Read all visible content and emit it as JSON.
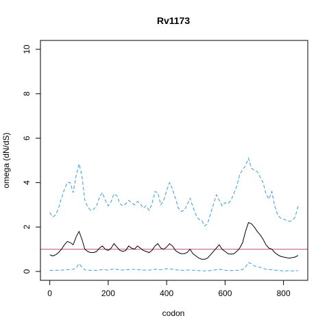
{
  "chart_data": {
    "type": "line",
    "title": "Rv1173",
    "xlabel": "codon",
    "ylabel": "omega (dN/dS)",
    "xlim": [
      -32,
      883
    ],
    "ylim": [
      -0.4,
      10.4
    ],
    "x_ticks": [
      0,
      200,
      400,
      600,
      800
    ],
    "y_ticks": [
      0,
      2,
      4,
      6,
      8,
      10
    ],
    "grid": false,
    "reference_line": {
      "y": 1,
      "color": "#c05090"
    },
    "series": [
      {
        "role": "upper",
        "color": "#3a9ad9",
        "dash": true,
        "points": [
          [
            0,
            2.65
          ],
          [
            10,
            2.45
          ],
          [
            20,
            2.55
          ],
          [
            30,
            2.85
          ],
          [
            40,
            3.3
          ],
          [
            50,
            3.7
          ],
          [
            60,
            4.0
          ],
          [
            70,
            4.0
          ],
          [
            80,
            3.55
          ],
          [
            90,
            4.3
          ],
          [
            100,
            4.85
          ],
          [
            110,
            4.3
          ],
          [
            120,
            3.2
          ],
          [
            130,
            2.9
          ],
          [
            140,
            2.75
          ],
          [
            150,
            2.8
          ],
          [
            160,
            2.95
          ],
          [
            170,
            3.35
          ],
          [
            180,
            3.55
          ],
          [
            190,
            3.2
          ],
          [
            200,
            2.95
          ],
          [
            210,
            3.15
          ],
          [
            220,
            3.5
          ],
          [
            230,
            3.4
          ],
          [
            240,
            3.05
          ],
          [
            250,
            2.95
          ],
          [
            260,
            3.05
          ],
          [
            270,
            3.2
          ],
          [
            280,
            3.1
          ],
          [
            290,
            3.0
          ],
          [
            300,
            3.15
          ],
          [
            310,
            3.05
          ],
          [
            320,
            2.85
          ],
          [
            330,
            2.95
          ],
          [
            340,
            2.75
          ],
          [
            350,
            3.05
          ],
          [
            360,
            3.6
          ],
          [
            370,
            3.55
          ],
          [
            380,
            3.0
          ],
          [
            390,
            3.2
          ],
          [
            400,
            3.65
          ],
          [
            410,
            4.0
          ],
          [
            420,
            3.7
          ],
          [
            430,
            3.3
          ],
          [
            440,
            2.85
          ],
          [
            450,
            2.7
          ],
          [
            460,
            2.75
          ],
          [
            470,
            3.0
          ],
          [
            480,
            3.3
          ],
          [
            490,
            2.9
          ],
          [
            500,
            2.55
          ],
          [
            510,
            2.35
          ],
          [
            520,
            2.3
          ],
          [
            530,
            2.05
          ],
          [
            540,
            2.15
          ],
          [
            550,
            2.6
          ],
          [
            560,
            3.0
          ],
          [
            570,
            3.45
          ],
          [
            580,
            3.2
          ],
          [
            590,
            2.95
          ],
          [
            600,
            3.1
          ],
          [
            610,
            3.05
          ],
          [
            620,
            3.2
          ],
          [
            630,
            3.5
          ],
          [
            640,
            3.85
          ],
          [
            650,
            4.35
          ],
          [
            660,
            4.6
          ],
          [
            670,
            4.75
          ],
          [
            680,
            5.1
          ],
          [
            690,
            4.65
          ],
          [
            700,
            4.55
          ],
          [
            710,
            4.5
          ],
          [
            720,
            4.25
          ],
          [
            730,
            4.0
          ],
          [
            740,
            3.5
          ],
          [
            750,
            3.25
          ],
          [
            760,
            3.6
          ],
          [
            770,
            2.95
          ],
          [
            780,
            2.55
          ],
          [
            790,
            2.4
          ],
          [
            800,
            2.35
          ],
          [
            810,
            2.3
          ],
          [
            820,
            2.25
          ],
          [
            830,
            2.3
          ],
          [
            840,
            2.45
          ],
          [
            850,
            2.95
          ]
        ]
      },
      {
        "role": "estimate",
        "color": "#000000",
        "dash": false,
        "points": [
          [
            0,
            0.75
          ],
          [
            10,
            0.7
          ],
          [
            20,
            0.75
          ],
          [
            30,
            0.85
          ],
          [
            40,
            1.0
          ],
          [
            50,
            1.2
          ],
          [
            60,
            1.35
          ],
          [
            70,
            1.3
          ],
          [
            80,
            1.2
          ],
          [
            90,
            1.55
          ],
          [
            100,
            1.8
          ],
          [
            110,
            1.45
          ],
          [
            120,
            1.0
          ],
          [
            130,
            0.9
          ],
          [
            140,
            0.85
          ],
          [
            150,
            0.85
          ],
          [
            160,
            0.9
          ],
          [
            170,
            1.05
          ],
          [
            180,
            1.15
          ],
          [
            190,
            1.0
          ],
          [
            200,
            0.95
          ],
          [
            210,
            1.05
          ],
          [
            220,
            1.25
          ],
          [
            230,
            1.1
          ],
          [
            240,
            0.95
          ],
          [
            250,
            0.9
          ],
          [
            260,
            0.95
          ],
          [
            270,
            1.15
          ],
          [
            280,
            1.05
          ],
          [
            290,
            1.0
          ],
          [
            300,
            1.15
          ],
          [
            310,
            1.05
          ],
          [
            320,
            0.95
          ],
          [
            330,
            0.9
          ],
          [
            340,
            0.85
          ],
          [
            350,
            0.95
          ],
          [
            360,
            1.15
          ],
          [
            370,
            1.25
          ],
          [
            380,
            1.05
          ],
          [
            390,
            1.0
          ],
          [
            400,
            1.1
          ],
          [
            410,
            1.25
          ],
          [
            420,
            1.15
          ],
          [
            430,
            0.95
          ],
          [
            440,
            0.85
          ],
          [
            450,
            0.8
          ],
          [
            460,
            0.8
          ],
          [
            470,
            0.85
          ],
          [
            480,
            1.0
          ],
          [
            490,
            0.8
          ],
          [
            500,
            0.7
          ],
          [
            510,
            0.6
          ],
          [
            520,
            0.55
          ],
          [
            530,
            0.55
          ],
          [
            540,
            0.6
          ],
          [
            550,
            0.75
          ],
          [
            560,
            0.9
          ],
          [
            570,
            1.05
          ],
          [
            580,
            1.2
          ],
          [
            590,
            1.0
          ],
          [
            600,
            0.9
          ],
          [
            610,
            0.8
          ],
          [
            620,
            0.78
          ],
          [
            630,
            0.8
          ],
          [
            640,
            0.9
          ],
          [
            650,
            1.05
          ],
          [
            660,
            1.3
          ],
          [
            670,
            1.8
          ],
          [
            680,
            2.2
          ],
          [
            690,
            2.15
          ],
          [
            700,
            2.0
          ],
          [
            710,
            1.8
          ],
          [
            720,
            1.65
          ],
          [
            730,
            1.45
          ],
          [
            740,
            1.2
          ],
          [
            750,
            1.05
          ],
          [
            760,
            1.0
          ],
          [
            770,
            0.85
          ],
          [
            780,
            0.75
          ],
          [
            790,
            0.68
          ],
          [
            800,
            0.65
          ],
          [
            810,
            0.62
          ],
          [
            820,
            0.6
          ],
          [
            830,
            0.62
          ],
          [
            840,
            0.65
          ],
          [
            850,
            0.72
          ]
        ]
      },
      {
        "role": "lower",
        "color": "#3a9ad9",
        "dash": true,
        "points": [
          [
            0,
            0.05
          ],
          [
            20,
            0.05
          ],
          [
            40,
            0.06
          ],
          [
            60,
            0.08
          ],
          [
            80,
            0.1
          ],
          [
            90,
            0.15
          ],
          [
            100,
            0.35
          ],
          [
            110,
            0.2
          ],
          [
            120,
            0.07
          ],
          [
            140,
            0.05
          ],
          [
            160,
            0.05
          ],
          [
            180,
            0.08
          ],
          [
            200,
            0.06
          ],
          [
            220,
            0.12
          ],
          [
            240,
            0.06
          ],
          [
            260,
            0.07
          ],
          [
            280,
            0.1
          ],
          [
            300,
            0.08
          ],
          [
            320,
            0.06
          ],
          [
            340,
            0.06
          ],
          [
            360,
            0.1
          ],
          [
            380,
            0.08
          ],
          [
            400,
            0.12
          ],
          [
            420,
            0.1
          ],
          [
            440,
            0.06
          ],
          [
            460,
            0.05
          ],
          [
            480,
            0.07
          ],
          [
            500,
            0.04
          ],
          [
            520,
            0.03
          ],
          [
            540,
            0.03
          ],
          [
            560,
            0.05
          ],
          [
            580,
            0.1
          ],
          [
            600,
            0.05
          ],
          [
            620,
            0.04
          ],
          [
            640,
            0.05
          ],
          [
            660,
            0.08
          ],
          [
            670,
            0.2
          ],
          [
            680,
            0.4
          ],
          [
            690,
            0.35
          ],
          [
            700,
            0.25
          ],
          [
            720,
            0.18
          ],
          [
            740,
            0.1
          ],
          [
            760,
            0.08
          ],
          [
            780,
            0.04
          ],
          [
            800,
            0.03
          ],
          [
            820,
            0.03
          ],
          [
            840,
            0.03
          ],
          [
            850,
            0.04
          ]
        ]
      }
    ]
  }
}
